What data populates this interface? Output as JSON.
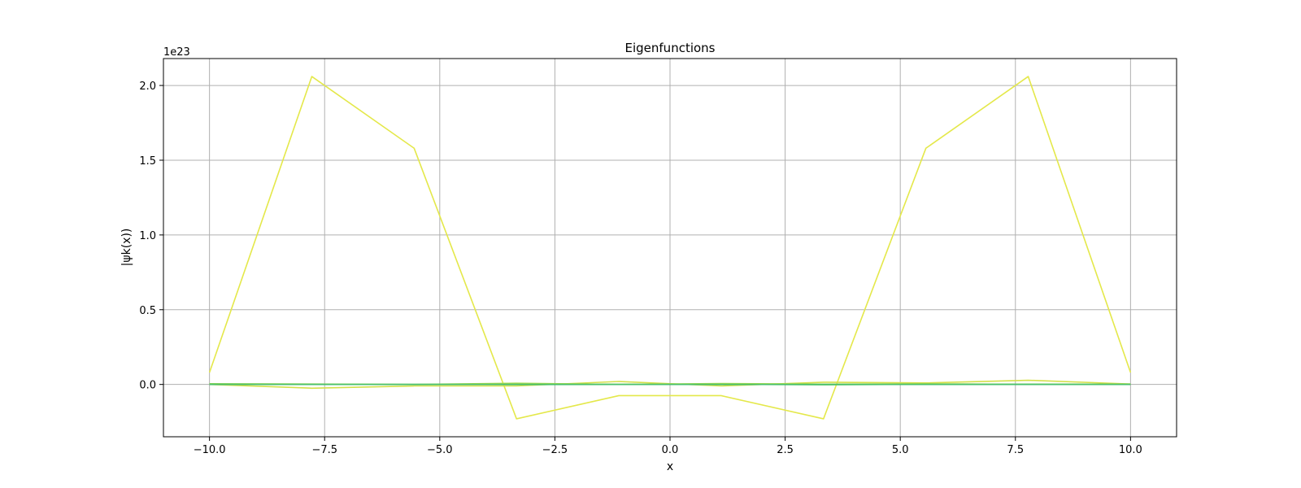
{
  "chart_data": {
    "type": "line",
    "title": "Eigenfunctions",
    "xlabel": "x",
    "ylabel": "|ψk(x))",
    "y_scale_label": "1e23",
    "xlim": [
      -11.0,
      11.0
    ],
    "ylim": [
      -0.35,
      2.18
    ],
    "y_multiplier": 1e+23,
    "grid": true,
    "x_ticks": [
      -10.0,
      -7.5,
      -5.0,
      -2.5,
      0.0,
      2.5,
      5.0,
      7.5,
      10.0
    ],
    "x_tick_labels": [
      "−10.0",
      "−7.5",
      "−5.0",
      "−2.5",
      "0.0",
      "2.5",
      "5.0",
      "7.5",
      "10.0"
    ],
    "y_ticks": [
      0.0,
      0.5,
      1.0,
      1.5,
      2.0
    ],
    "y_tick_labels": [
      "0.0",
      "0.5",
      "1.0",
      "1.5",
      "2.0"
    ],
    "x": [
      -10.0,
      -7.778,
      -5.556,
      -3.333,
      -1.111,
      1.111,
      3.333,
      5.556,
      7.778,
      10.0
    ],
    "series": [
      {
        "color": "#e4e84a",
        "values": [
          0.08,
          2.06,
          1.58,
          -0.23,
          -0.075,
          -0.075,
          -0.23,
          1.58,
          2.06,
          0.08
        ]
      },
      {
        "color": "#d4e04a",
        "values": [
          0.0,
          -0.025,
          -0.01,
          -0.01,
          0.02,
          -0.01,
          0.015,
          0.01,
          0.028,
          0.003
        ]
      },
      {
        "color": "#a8dc4c",
        "values": [
          0.005,
          0.003,
          0.0,
          0.008,
          0.0,
          0.006,
          0.002,
          0.004,
          0.001,
          0.003
        ]
      },
      {
        "color": "#7dd058",
        "values": [
          0.0,
          0.001,
          -0.001,
          0.002,
          0.001,
          -0.001,
          0.001,
          0.0,
          0.002,
          0.0
        ]
      },
      {
        "color": "#5ec962",
        "values": [
          0.002,
          0.0,
          0.001,
          -0.001,
          0.0,
          0.001,
          -0.002,
          0.001,
          0.0,
          0.001
        ]
      },
      {
        "color": "#4ac16d",
        "values": [
          0.0,
          0.0,
          0.0,
          0.0,
          0.0,
          0.0,
          0.0,
          0.0,
          0.0,
          0.0
        ]
      }
    ]
  }
}
